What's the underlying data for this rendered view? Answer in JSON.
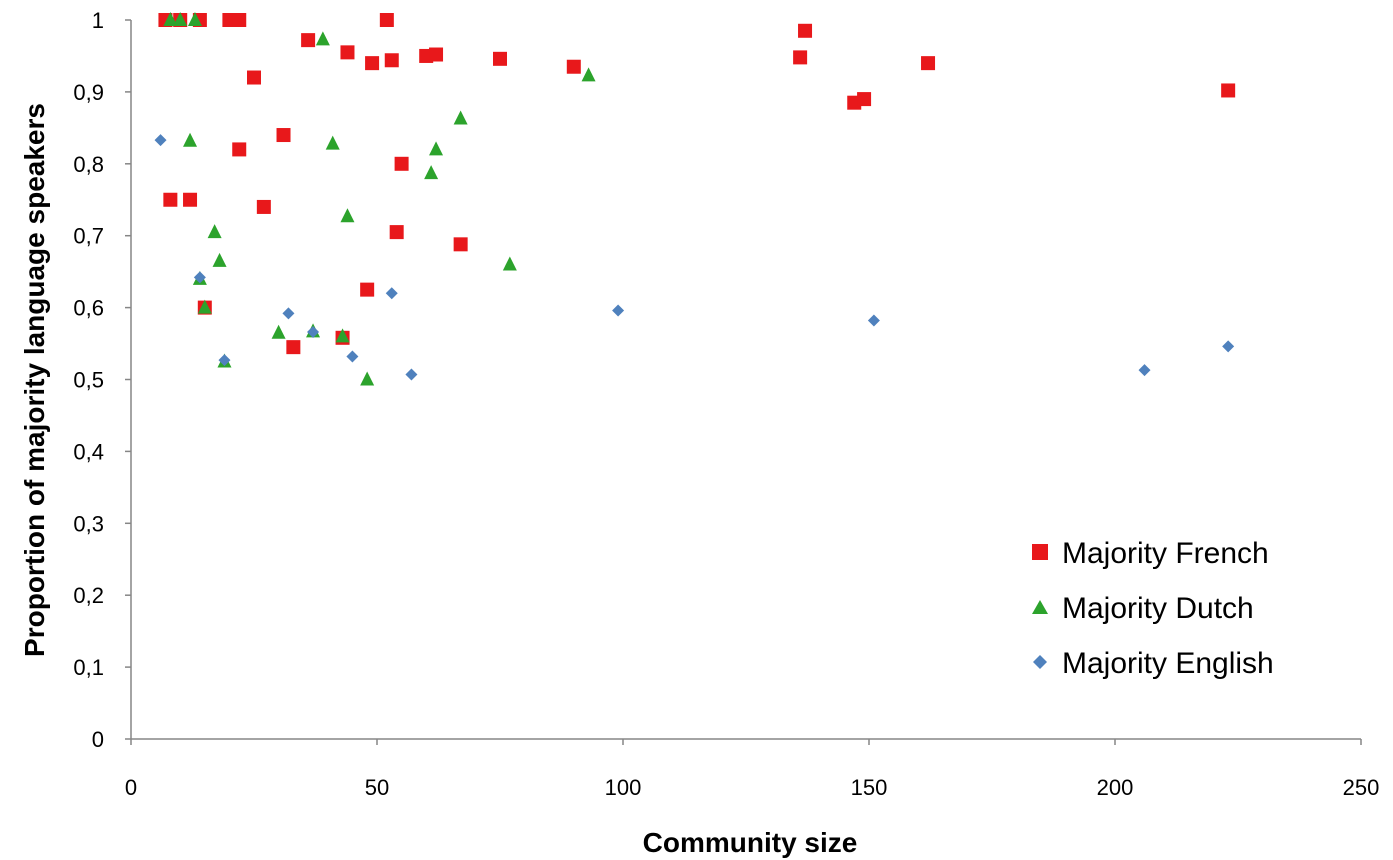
{
  "chart_data": {
    "type": "scatter",
    "title": "",
    "xlabel": "Community size",
    "ylabel": "Proportion of majority language speakers",
    "xlim": [
      0,
      250
    ],
    "ylim": [
      0,
      1
    ],
    "x_ticks": [
      "0",
      "50",
      "100",
      "150",
      "200",
      "250"
    ],
    "x_tick_values": [
      0,
      50,
      100,
      150,
      200,
      250
    ],
    "y_ticks": [
      "0",
      "0,1",
      "0,2",
      "0,3",
      "0,4",
      "0,5",
      "0,6",
      "0,7",
      "0,8",
      "0,9",
      "1"
    ],
    "y_tick_values": [
      0,
      0.1,
      0.2,
      0.3,
      0.4,
      0.5,
      0.6,
      0.7,
      0.8,
      0.9,
      1
    ],
    "grid": false,
    "legend_position": "bottom-right",
    "series": [
      {
        "name": "Majority French",
        "marker": "square",
        "color": "#e8181b",
        "points": [
          [
            7,
            1
          ],
          [
            10,
            1
          ],
          [
            14,
            1
          ],
          [
            20,
            1
          ],
          [
            22,
            1
          ],
          [
            52,
            1
          ],
          [
            8,
            0.75
          ],
          [
            12,
            0.75
          ],
          [
            15,
            0.6
          ],
          [
            22,
            0.82
          ],
          [
            25,
            0.92
          ],
          [
            27,
            0.74
          ],
          [
            31,
            0.84
          ],
          [
            33,
            0.545
          ],
          [
            36,
            0.972
          ],
          [
            43,
            0.558
          ],
          [
            44,
            0.955
          ],
          [
            48,
            0.625
          ],
          [
            49,
            0.94
          ],
          [
            53,
            0.944
          ],
          [
            54,
            0.705
          ],
          [
            55,
            0.8
          ],
          [
            60,
            0.95
          ],
          [
            62,
            0.952
          ],
          [
            67,
            0.688
          ],
          [
            75,
            0.946
          ],
          [
            90,
            0.935
          ],
          [
            136,
            0.948
          ],
          [
            137,
            0.985
          ],
          [
            147,
            0.885
          ],
          [
            149,
            0.89
          ],
          [
            162,
            0.94
          ],
          [
            223,
            0.902
          ]
        ]
      },
      {
        "name": "Majority Dutch",
        "marker": "triangle",
        "color": "#2ca32c",
        "points": [
          [
            8,
            1
          ],
          [
            10,
            1
          ],
          [
            13,
            1
          ],
          [
            12,
            0.832
          ],
          [
            14,
            0.64
          ],
          [
            15,
            0.6
          ],
          [
            17,
            0.705
          ],
          [
            18,
            0.665
          ],
          [
            19,
            0.525
          ],
          [
            30,
            0.565
          ],
          [
            37,
            0.567
          ],
          [
            39,
            0.973
          ],
          [
            41,
            0.828
          ],
          [
            43,
            0.56
          ],
          [
            44,
            0.727
          ],
          [
            48,
            0.5
          ],
          [
            61,
            0.787
          ],
          [
            62,
            0.82
          ],
          [
            67,
            0.863
          ],
          [
            77,
            0.66
          ],
          [
            93,
            0.923
          ]
        ]
      },
      {
        "name": "Majority English",
        "marker": "diamond",
        "color": "#4f81bd",
        "points": [
          [
            6,
            0.833
          ],
          [
            14,
            0.642
          ],
          [
            19,
            0.527
          ],
          [
            32,
            0.592
          ],
          [
            37,
            0.566
          ],
          [
            45,
            0.532
          ],
          [
            53,
            0.62
          ],
          [
            57,
            0.507
          ],
          [
            99,
            0.596
          ],
          [
            151,
            0.582
          ],
          [
            206,
            0.513
          ],
          [
            223,
            0.546
          ]
        ]
      }
    ]
  }
}
